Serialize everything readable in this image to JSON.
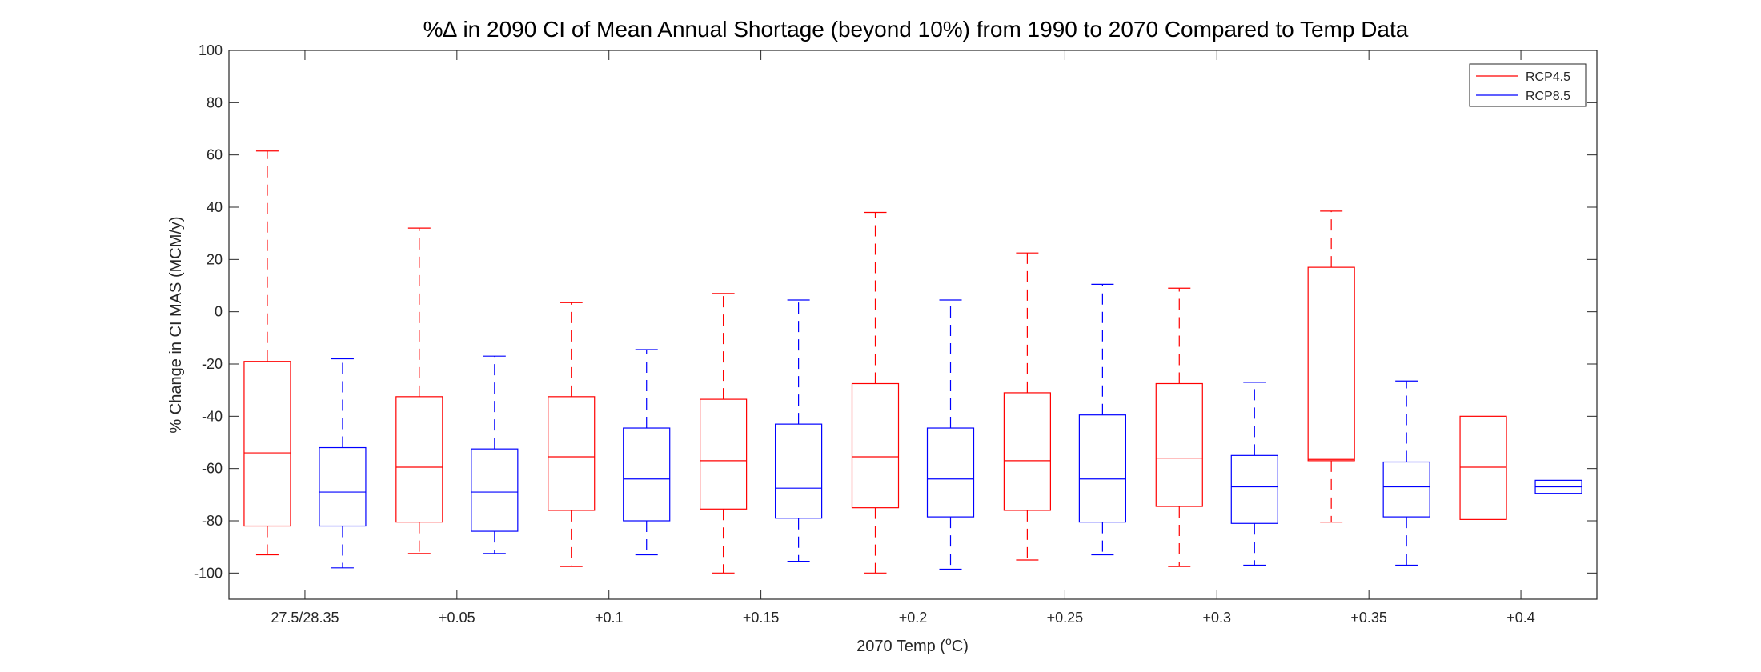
{
  "chart_data": {
    "type": "box",
    "title": "%∆ in 2090 CI of Mean Annual Shortage (beyond 10%) from 1990 to 2070 Compared to Temp Data",
    "xlabel": {
      "main": "2070 Temp (",
      "sup": "o",
      "end": "C)"
    },
    "ylabel": "% Change in CI MAS (MCM/y)",
    "ylim": [
      -110,
      100
    ],
    "yticks": [
      100,
      80,
      60,
      40,
      20,
      0,
      -20,
      -40,
      -60,
      -80,
      -100
    ],
    "categories": [
      "27.5/28.35",
      "+0.05",
      "+0.1",
      "+0.15",
      "+0.2",
      "+0.25",
      "+0.3",
      "+0.35",
      "+0.4"
    ],
    "legend_position": "top-right",
    "series": [
      {
        "name": "RCP4.5",
        "color": "#ff0000",
        "boxes": [
          {
            "min": -93,
            "q1": -82,
            "median": -54,
            "q3": -19,
            "max": 61.5
          },
          {
            "min": -92.5,
            "q1": -80.5,
            "median": -59.5,
            "q3": -32.5,
            "max": 32
          },
          {
            "min": -97.5,
            "q1": -76,
            "median": -55.5,
            "q3": -32.5,
            "max": 3.5
          },
          {
            "min": -100,
            "q1": -75.5,
            "median": -57,
            "q3": -33.5,
            "max": 7
          },
          {
            "min": -100,
            "q1": -75,
            "median": -55.5,
            "q3": -27.5,
            "max": 38
          },
          {
            "min": -95,
            "q1": -76,
            "median": -57,
            "q3": -31,
            "max": 22.5
          },
          {
            "min": -97.5,
            "q1": -74.5,
            "median": -56,
            "q3": -27.5,
            "max": 9
          },
          {
            "min": -80.5,
            "q1": -57,
            "median": -56.5,
            "q3": 17,
            "max": 38.5
          },
          {
            "min": -79.5,
            "q1": -79.5,
            "median": -59.5,
            "q3": -40,
            "max": -40
          }
        ]
      },
      {
        "name": "RCP8.5",
        "color": "#0000ff",
        "boxes": [
          {
            "min": -98,
            "q1": -82,
            "median": -69,
            "q3": -52,
            "max": -18
          },
          {
            "min": -92.5,
            "q1": -84,
            "median": -69,
            "q3": -52.5,
            "max": -17
          },
          {
            "min": -93,
            "q1": -80,
            "median": -64,
            "q3": -44.5,
            "max": -14.5
          },
          {
            "min": -95.5,
            "q1": -79,
            "median": -67.5,
            "q3": -43,
            "max": 4.5
          },
          {
            "min": -98.5,
            "q1": -78.5,
            "median": -64,
            "q3": -44.5,
            "max": 4.5
          },
          {
            "min": -93,
            "q1": -80.5,
            "median": -64,
            "q3": -39.5,
            "max": 10.5
          },
          {
            "min": -97,
            "q1": -81,
            "median": -67,
            "q3": -55,
            "max": -27
          },
          {
            "min": -97,
            "q1": -78.5,
            "median": -67,
            "q3": -57.5,
            "max": -26.5
          },
          {
            "min": -69.5,
            "q1": -69.5,
            "median": -67,
            "q3": -64.5,
            "max": -64.5
          }
        ]
      }
    ]
  }
}
